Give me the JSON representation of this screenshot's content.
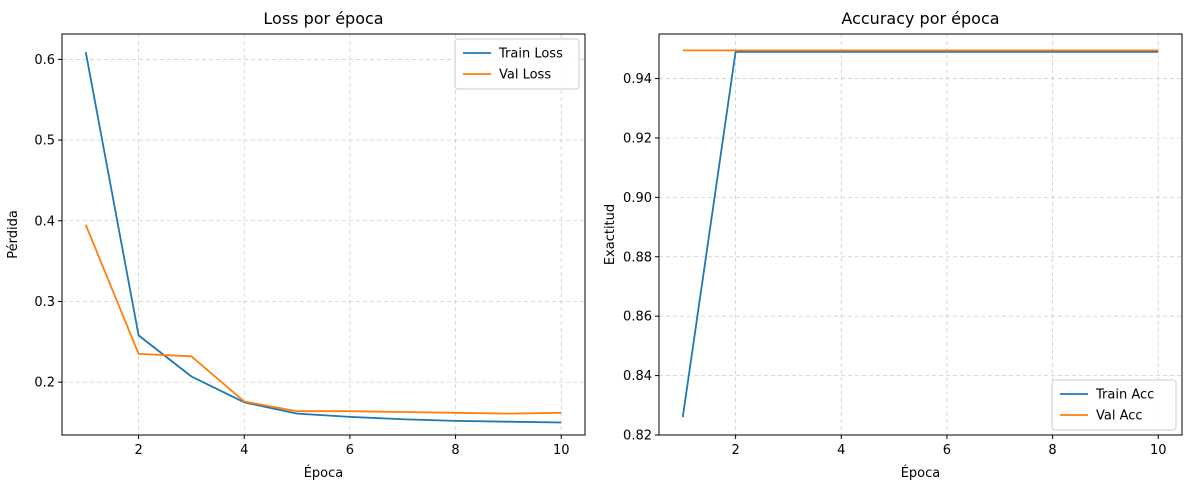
{
  "chart_data": [
    {
      "type": "line",
      "title": "Loss por época",
      "xlabel": "Época",
      "ylabel": "Pérdida",
      "xlim": [
        0.55,
        10.45
      ],
      "ylim": [
        0.1345,
        0.6315
      ],
      "xticks": [
        2,
        4,
        6,
        8,
        10
      ],
      "yticks": [
        0.2,
        0.3,
        0.4,
        0.5,
        0.6
      ],
      "ytick_labels": [
        "0.2",
        "0.3",
        "0.4",
        "0.5",
        "0.6"
      ],
      "grid": true,
      "legend_position": "top-right",
      "x": [
        1,
        2,
        3,
        4,
        5,
        6,
        7,
        8,
        9,
        10
      ],
      "series": [
        {
          "name": "Train Loss",
          "color": "#1f77b4",
          "values": [
            0.609,
            0.258,
            0.207,
            0.175,
            0.161,
            0.157,
            0.154,
            0.152,
            0.151,
            0.15
          ]
        },
        {
          "name": "Val Loss",
          "color": "#ff7f0e",
          "values": [
            0.395,
            0.235,
            0.232,
            0.176,
            0.164,
            0.164,
            0.163,
            0.162,
            0.161,
            0.162
          ]
        }
      ]
    },
    {
      "type": "line",
      "title": "Accuracy por época",
      "xlabel": "Época",
      "ylabel": "Exactitud",
      "xlim": [
        0.55,
        10.45
      ],
      "ylim": [
        0.82,
        0.955
      ],
      "xticks": [
        2,
        4,
        6,
        8,
        10
      ],
      "yticks": [
        0.82,
        0.84,
        0.86,
        0.88,
        0.9,
        0.92,
        0.94
      ],
      "ytick_labels": [
        "0.82",
        "0.84",
        "0.86",
        "0.88",
        "0.90",
        "0.92",
        "0.94"
      ],
      "grid": true,
      "legend_position": "bottom-right",
      "x": [
        1,
        2,
        3,
        4,
        5,
        6,
        7,
        8,
        9,
        10
      ],
      "series": [
        {
          "name": "Train Acc",
          "color": "#1f77b4",
          "values": [
            0.826,
            0.949,
            0.949,
            0.949,
            0.949,
            0.949,
            0.949,
            0.949,
            0.949,
            0.949
          ]
        },
        {
          "name": "Val Acc",
          "color": "#ff7f0e",
          "values": [
            0.9495,
            0.9495,
            0.9495,
            0.9495,
            0.9495,
            0.9495,
            0.9495,
            0.9495,
            0.9495,
            0.9495
          ]
        }
      ]
    }
  ]
}
